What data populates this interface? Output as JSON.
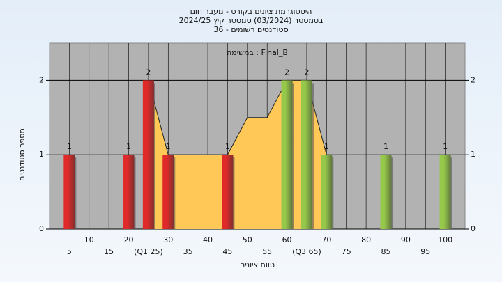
{
  "chart_data": {
    "type": "histogram",
    "title": "היסטוגרמת ציונים בקורס - מעבר חום",
    "subtitle": "בסמסטר  (03/2024)  סמסטר קיץ 2024/25",
    "subtitle2": "סטודנטים רשומים - 36",
    "legend_label": "Final_B : במשימה",
    "y_label": "מספר סטודנטים",
    "x_label": "טווח ציונים",
    "x": [
      5,
      20,
      25,
      30,
      45,
      60,
      65,
      70,
      85,
      100
    ],
    "values": [
      1,
      1,
      2,
      1,
      1,
      2,
      2,
      1,
      1,
      1
    ],
    "bar_colors": [
      "#e02a2a",
      "#e02a2a",
      "#e02a2a",
      "#e02a2a",
      "#e02a2a",
      "#96c84a",
      "#96c84a",
      "#96c84a",
      "#96c84a",
      "#96c84a"
    ],
    "area": {
      "color": "#ffc857",
      "x": [
        25,
        30,
        45,
        50,
        55,
        60,
        65,
        70
      ],
      "values": [
        2,
        1,
        1,
        1.5,
        1.5,
        2,
        2,
        1
      ]
    },
    "xlim": [
      0,
      105
    ],
    "xticks": [
      5,
      10,
      15,
      20,
      {
        "value": 25,
        "label": "(Q1 25)"
      },
      30,
      35,
      40,
      45,
      50,
      55,
      60,
      {
        "value": 65,
        "label": "(Q3 65)"
      },
      70,
      75,
      80,
      85,
      90,
      95,
      100
    ],
    "ylim": [
      0,
      2.5
    ],
    "yticks": [
      0,
      1,
      2
    ],
    "grid": true
  }
}
